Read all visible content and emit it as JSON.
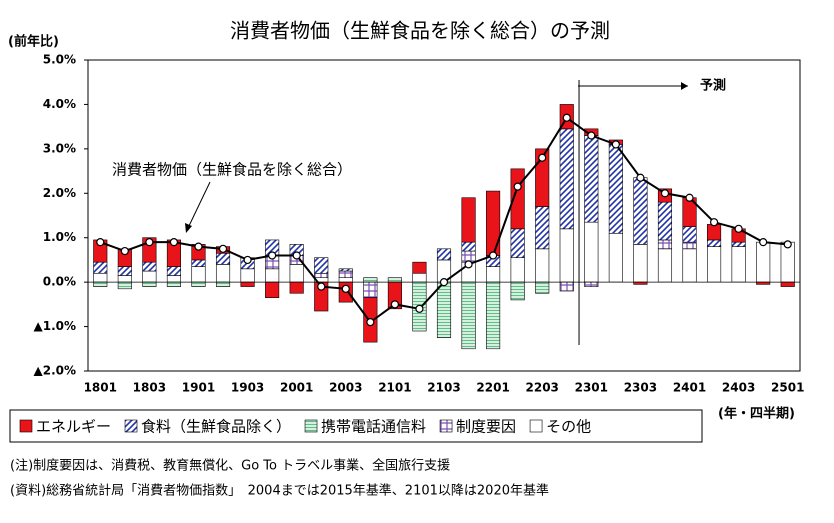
{
  "chart_data": {
    "type": "bar",
    "title": "消費者物価（生鮮食品を除く総合）の予測",
    "y_unit": "(前年比)",
    "x_unit": "(年・四半期)",
    "forecast_label": "予測",
    "notes": [
      "(注)制度要因は、消費税、教育無償化、Go To トラベル事業、全国旅行支援",
      "(資料)総務省統計局「消費者物価指数」　2004までは2015年基準、2101以降は2020年基準"
    ],
    "categories": [
      "1801",
      null,
      "1803",
      null,
      "1901",
      null,
      "1903",
      null,
      "2001",
      null,
      "2003",
      null,
      "2101",
      null,
      "2103",
      null,
      "2201",
      null,
      "2203",
      null,
      "2301",
      null,
      "2303",
      null,
      "2401",
      null,
      "2403",
      null,
      "2501"
    ],
    "series": [
      {
        "name": "エネルギー",
        "color": "#e8141a",
        "pattern": "solid",
        "values": [
          0.5,
          0.4,
          0.55,
          0.6,
          0.35,
          0.15,
          -0.1,
          -0.35,
          -0.25,
          -0.65,
          -0.45,
          -1.0,
          -0.6,
          0.25,
          0,
          1.0,
          1.45,
          1.35,
          1.3,
          0.55,
          0.15,
          0.1,
          -0.05,
          0.3,
          0.65,
          0.35,
          0.3,
          -0.05,
          -0.1
        ]
      },
      {
        "name": "食料（生鮮食品除く）",
        "color": "#2233aa",
        "pattern": "diagonal",
        "values": [
          0.25,
          0.2,
          0.2,
          0.2,
          0.15,
          0.25,
          0.25,
          0.35,
          0.25,
          0.35,
          0.05,
          0,
          0,
          0,
          0.25,
          0.2,
          0.25,
          0.65,
          0.95,
          2.25,
          1.95,
          2.0,
          1.5,
          0.85,
          0.35,
          0.15,
          0.1,
          0,
          0
        ]
      },
      {
        "name": "携帯電話通信料",
        "color": "#5fbf85",
        "pattern": "lines",
        "values": [
          -0.1,
          -0.15,
          -0.1,
          -0.1,
          -0.1,
          -0.1,
          0,
          0,
          0,
          0,
          0,
          0.1,
          0.1,
          -1.1,
          -1.25,
          -1.5,
          -1.5,
          -0.4,
          -0.25,
          0,
          0,
          0,
          0,
          0,
          0,
          0,
          0,
          0,
          0
        ]
      },
      {
        "name": "制度要因",
        "color": "#7a50b0",
        "pattern": "grid",
        "values": [
          0,
          0,
          0,
          0,
          0,
          0,
          0,
          0.3,
          0.2,
          0.1,
          0.15,
          -0.35,
          0,
          0,
          0,
          0.25,
          0,
          0,
          0,
          -0.2,
          -0.1,
          0,
          0,
          0.2,
          0.15,
          0,
          0,
          0,
          0
        ]
      },
      {
        "name": "その他",
        "color": "#ffffff",
        "pattern": "solid",
        "values": [
          0.2,
          0.15,
          0.25,
          0.15,
          0.35,
          0.4,
          0.3,
          0.3,
          0.4,
          0.1,
          0.1,
          0,
          0,
          0.2,
          0.5,
          0.45,
          0.35,
          0.55,
          0.75,
          1.2,
          1.35,
          1.1,
          0.85,
          0.75,
          0.75,
          0.8,
          0.8,
          0.9,
          0.9
        ]
      }
    ],
    "line": {
      "type": "line",
      "name": "消費者物価（生鮮食品を除く総合）",
      "color": "#000000",
      "values": [
        0.9,
        0.7,
        0.9,
        0.9,
        0.8,
        0.75,
        0.5,
        0.6,
        0.6,
        -0.1,
        -0.15,
        -0.9,
        -0.5,
        -0.6,
        0,
        0.4,
        0.6,
        2.15,
        2.8,
        3.7,
        3.3,
        3.1,
        2.35,
        2.0,
        1.9,
        1.35,
        1.2,
        0.9,
        0.85
      ]
    },
    "ylim": [
      -2.0,
      5.0
    ],
    "yticks": [
      {
        "value": -2.0,
        "label": "▲2.0%"
      },
      {
        "value": -1.0,
        "label": "▲1.0%"
      },
      {
        "value": 0.0,
        "label": "0.0%"
      },
      {
        "value": 1.0,
        "label": "1.0%"
      },
      {
        "value": 2.0,
        "label": "2.0%"
      },
      {
        "value": 3.0,
        "label": "3.0%"
      },
      {
        "value": 4.0,
        "label": "4.0%"
      },
      {
        "value": 5.0,
        "label": "5.0%"
      }
    ],
    "grid": false,
    "legend": "bottom"
  }
}
